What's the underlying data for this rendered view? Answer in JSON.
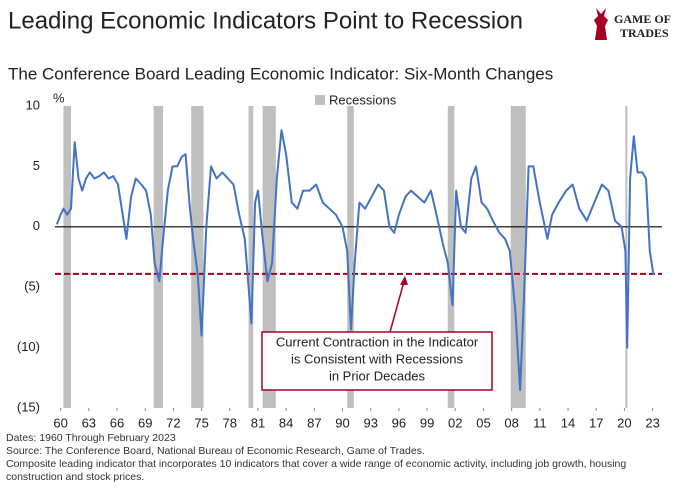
{
  "chart_data": {
    "type": "line",
    "title": "Leading Economic Indicators Point to Recession",
    "subtitle": "The Conference Board Leading Economic Indicator: Six-Month Changes",
    "logo": [
      "GAME OF",
      "TRADES"
    ],
    "ylabel": "%",
    "color": "#4472c4",
    "x": [
      1959.6,
      1960.0,
      1960.3,
      1960.7,
      1961.1,
      1961.5,
      1961.9,
      1962.3,
      1962.7,
      1963.1,
      1963.6,
      1964.1,
      1964.6,
      1965.1,
      1965.6,
      1966.1,
      1966.6,
      1967.0,
      1967.5,
      1968.0,
      1968.6,
      1969.1,
      1969.6,
      1970.0,
      1970.5,
      1970.9,
      1971.4,
      1971.9,
      1972.4,
      1972.9,
      1973.3,
      1973.7,
      1974.1,
      1974.6,
      1975.0,
      1975.5,
      1976.0,
      1976.6,
      1977.2,
      1977.8,
      1978.4,
      1979.0,
      1979.6,
      1980.3,
      1980.7,
      1981.0,
      1981.5,
      1982.0,
      1982.5,
      1983.0,
      1983.5,
      1984.0,
      1984.6,
      1985.2,
      1985.8,
      1986.5,
      1987.2,
      1987.9,
      1988.6,
      1989.3,
      1990.0,
      1990.5,
      1990.9,
      1991.3,
      1991.8,
      1992.4,
      1993.1,
      1993.8,
      1994.4,
      1995.0,
      1995.5,
      1996.0,
      1996.7,
      1997.3,
      1998.0,
      1998.7,
      1999.4,
      2000.0,
      2000.7,
      2001.2,
      2001.7,
      2002.1,
      2002.6,
      2003.1,
      2003.7,
      2004.2,
      2004.8,
      2005.4,
      2006.0,
      2006.7,
      2007.3,
      2007.8,
      2008.4,
      2008.9,
      2009.3,
      2009.8,
      2010.3,
      2011.0,
      2011.8,
      2012.3,
      2013.0,
      2013.8,
      2014.5,
      2015.2,
      2016.0,
      2016.8,
      2017.6,
      2018.3,
      2019.0,
      2019.7,
      2020.1,
      2020.3,
      2020.6,
      2021.0,
      2021.4,
      2021.9,
      2022.3,
      2022.7,
      2023.1
    ],
    "values": [
      0.2,
      1.0,
      1.5,
      1.0,
      1.5,
      7.0,
      4.0,
      3.0,
      4.0,
      4.5,
      4.0,
      4.2,
      4.5,
      4.0,
      4.2,
      3.5,
      1.0,
      -1.0,
      2.5,
      4.0,
      3.5,
      3.0,
      1.0,
      -3.0,
      -4.5,
      -1.0,
      3.0,
      5.0,
      5.0,
      5.8,
      6.0,
      2.0,
      -1.0,
      -4.0,
      -9.0,
      0.0,
      5.0,
      4.0,
      4.5,
      4.0,
      3.5,
      1.0,
      -1.0,
      -8.0,
      2.0,
      3.0,
      -1.0,
      -4.5,
      -3.0,
      4.0,
      8.0,
      6.0,
      2.0,
      1.5,
      3.0,
      3.0,
      3.5,
      2.0,
      1.5,
      1.0,
      0.0,
      -2.0,
      -8.5,
      -3.0,
      2.0,
      1.5,
      2.5,
      3.5,
      3.0,
      0.0,
      -0.5,
      1.0,
      2.5,
      3.0,
      2.5,
      2.0,
      3.0,
      1.0,
      -1.5,
      -3.0,
      -6.5,
      3.0,
      0.0,
      -0.5,
      4.0,
      5.0,
      2.0,
      1.5,
      0.5,
      -0.5,
      -1.0,
      -2.0,
      -7.0,
      -13.5,
      -6.0,
      5.0,
      5.0,
      2.0,
      -1.0,
      1.0,
      2.0,
      3.0,
      3.5,
      1.5,
      0.5,
      2.0,
      3.5,
      3.0,
      0.5,
      0.0,
      -2.0,
      -10.0,
      4.0,
      7.5,
      4.5,
      4.5,
      4.0,
      -2.0,
      -4.0
    ],
    "recession_label": "Recessions",
    "recession_color": "#bfbfbf",
    "recessions": [
      [
        1960.3,
        1961.1
      ],
      [
        1969.9,
        1970.9
      ],
      [
        1973.9,
        1975.2
      ],
      [
        1980.0,
        1980.5
      ],
      [
        1981.5,
        1982.9
      ],
      [
        1990.5,
        1991.2
      ],
      [
        2001.2,
        2001.9
      ],
      [
        2007.9,
        2009.5
      ],
      [
        2020.1,
        2020.3
      ]
    ],
    "reference_line": -3.9,
    "reference_color": "#a50021",
    "annotation": [
      "Current Contraction in the Indicator",
      "is Consistent with Recessions",
      "in Prior Decades"
    ],
    "xlim": [
      1959.4,
      2024.0
    ],
    "xticks": [
      {
        "value": 1960,
        "label": "60"
      },
      {
        "value": 1963,
        "label": "63"
      },
      {
        "value": 1966,
        "label": "66"
      },
      {
        "value": 1969,
        "label": "69"
      },
      {
        "value": 1972,
        "label": "72"
      },
      {
        "value": 1975,
        "label": "75"
      },
      {
        "value": 1978,
        "label": "78"
      },
      {
        "value": 1981,
        "label": "81"
      },
      {
        "value": 1984,
        "label": "84"
      },
      {
        "value": 1987,
        "label": "87"
      },
      {
        "value": 1990,
        "label": "90"
      },
      {
        "value": 1993,
        "label": "93"
      },
      {
        "value": 1996,
        "label": "96"
      },
      {
        "value": 1999,
        "label": "99"
      },
      {
        "value": 2002,
        "label": "02"
      },
      {
        "value": 2005,
        "label": "05"
      },
      {
        "value": 2008,
        "label": "08"
      },
      {
        "value": 2011,
        "label": "11"
      },
      {
        "value": 2014,
        "label": "14"
      },
      {
        "value": 2017,
        "label": "17"
      },
      {
        "value": 2020,
        "label": "20"
      },
      {
        "value": 2023,
        "label": "23"
      }
    ],
    "ylim": [
      -15,
      10
    ],
    "yticks": [
      10,
      5,
      0,
      {
        "value": -5,
        "label": "(5)"
      },
      {
        "value": -10,
        "label": "(10)"
      },
      {
        "value": -15,
        "label": "(15)"
      }
    ],
    "zero_line": true,
    "notes": [
      "Dates: 1960 Through February 2023",
      "Source: The Conference Board, National Bureau of Economic Research, Game of Trades.",
      "Composite leading indicator that incorporates 10 indicators that cover a wide range of economic activity, including job growth, housing construction and stock prices."
    ]
  }
}
